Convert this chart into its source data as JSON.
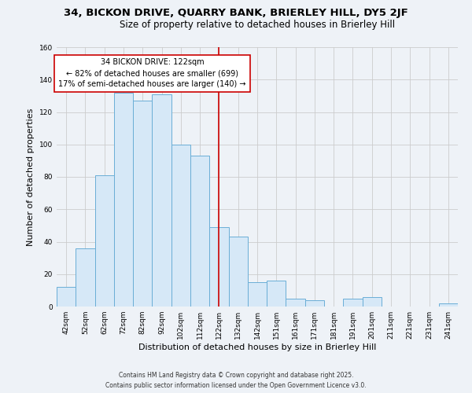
{
  "title_line1": "34, BICKON DRIVE, QUARRY BANK, BRIERLEY HILL, DY5 2JF",
  "title_line2": "Size of property relative to detached houses in Brierley Hill",
  "xlabel": "Distribution of detached houses by size in Brierley Hill",
  "ylabel": "Number of detached properties",
  "bar_labels": [
    "42sqm",
    "52sqm",
    "62sqm",
    "72sqm",
    "82sqm",
    "92sqm",
    "102sqm",
    "112sqm",
    "122sqm",
    "132sqm",
    "142sqm",
    "151sqm",
    "161sqm",
    "171sqm",
    "181sqm",
    "191sqm",
    "201sqm",
    "211sqm",
    "221sqm",
    "231sqm",
    "241sqm"
  ],
  "bar_values": [
    12,
    36,
    81,
    132,
    127,
    131,
    100,
    93,
    49,
    43,
    15,
    16,
    5,
    4,
    0,
    5,
    6,
    0,
    0,
    0,
    2
  ],
  "bar_color": "#d6e8f7",
  "bar_edgecolor": "#6aaed6",
  "vline_x": 8,
  "vline_color": "#cc0000",
  "annotation_text": "34 BICKON DRIVE: 122sqm\n← 82% of detached houses are smaller (699)\n17% of semi-detached houses are larger (140) →",
  "annotation_box_edgecolor": "#cc0000",
  "annotation_box_facecolor": "#ffffff",
  "ylim": [
    0,
    160
  ],
  "yticks": [
    0,
    20,
    40,
    60,
    80,
    100,
    120,
    140,
    160
  ],
  "grid_color": "#cccccc",
  "bg_color": "#eef2f7",
  "footer_line1": "Contains HM Land Registry data © Crown copyright and database right 2025.",
  "footer_line2": "Contains public sector information licensed under the Open Government Licence v3.0.",
  "title_fontsize": 9.5,
  "subtitle_fontsize": 8.5,
  "axis_label_fontsize": 8,
  "tick_fontsize": 6.5,
  "annotation_fontsize": 7,
  "footer_fontsize": 5.5
}
